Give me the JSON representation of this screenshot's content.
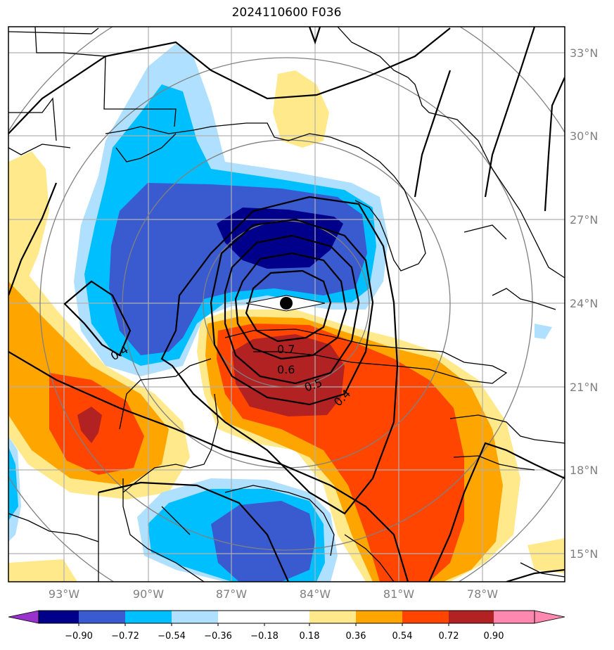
{
  "title": "2024110600 F036",
  "map": {
    "latitude_labels": [
      "33°N",
      "30°N",
      "27°N",
      "24°N",
      "21°N",
      "18°N",
      "15°N"
    ],
    "longitude_labels": [
      "93°W",
      "90°W",
      "87°W",
      "84°W",
      "81°W",
      "78°W"
    ],
    "storm_center_marker": "filled-black-dot",
    "contour_labels": [
      "0.7",
      "0.6",
      "0.5",
      "0.4",
      "0.4"
    ]
  },
  "colorbar": {
    "ticks": [
      "−0.90",
      "−0.72",
      "−0.54",
      "−0.36",
      "−0.18",
      "0.18",
      "0.36",
      "0.54",
      "0.72",
      "0.90"
    ],
    "colors": [
      "#9932cc",
      "#00008b",
      "#3a5bcf",
      "#00bfff",
      "#b0e0ff",
      "#ffffff",
      "#ffe98a",
      "#ffa500",
      "#ff4500",
      "#b22222",
      "#ff88b0"
    ]
  }
}
